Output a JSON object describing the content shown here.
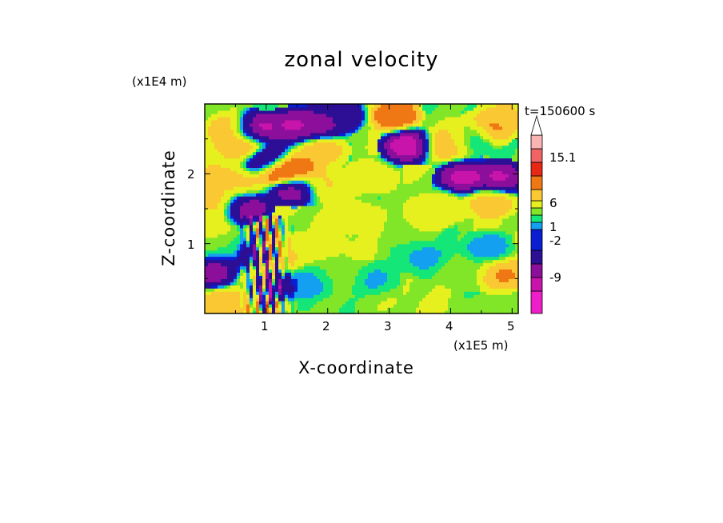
{
  "chart_data": {
    "type": "heatmap",
    "title": "zonal velocity",
    "xlabel": "X-coordinate",
    "ylabel": "Z-coordinate",
    "x_units": "(x1E5 m)",
    "y_units": "(x1E4 m)",
    "time_label": "t=150600 s",
    "x_ticks": [
      "1",
      "2",
      "3",
      "4",
      "5"
    ],
    "y_ticks": [
      "1",
      "2"
    ],
    "x_range": [
      0,
      5.1
    ],
    "z_range": [
      0,
      3.0
    ],
    "colorbar": {
      "labels": [
        "15.1",
        "6",
        "1",
        "-2",
        "-9"
      ],
      "levels": [
        -15,
        -12,
        -9,
        -6,
        -2,
        -1,
        0,
        1,
        2,
        4,
        6,
        9,
        12,
        15.1
      ],
      "colors": [
        "#f01ec8",
        "#c814aa",
        "#8c0f9b",
        "#2d0f96",
        "#0a1ed2",
        "#14a0f0",
        "#14e678",
        "#82e628",
        "#e6f01e",
        "#fac832",
        "#f07814",
        "#e62814",
        "#f06464",
        "#fab4b4"
      ],
      "extend_top": true
    },
    "features": [
      {
        "x": 0.85,
        "z": 2.65,
        "v": -12
      },
      {
        "x": 1.45,
        "z": 2.7,
        "v": -11
      },
      {
        "x": 1.85,
        "z": 2.7,
        "v": -9
      },
      {
        "x": 2.2,
        "z": 2.85,
        "v": -6
      },
      {
        "x": 3.1,
        "z": 2.85,
        "v": 9
      },
      {
        "x": 0.45,
        "z": 2.65,
        "v": 6
      },
      {
        "x": 0.2,
        "z": 1.95,
        "v": 5
      },
      {
        "x": 0.65,
        "z": 2.4,
        "v": 7
      },
      {
        "x": 1.05,
        "z": 2.2,
        "v": -10
      },
      {
        "x": 1.25,
        "z": 2.05,
        "v": 9
      },
      {
        "x": 1.3,
        "z": 2.05,
        "v": 13
      },
      {
        "x": 1.55,
        "z": 2.1,
        "v": 7
      },
      {
        "x": 1.9,
        "z": 2.35,
        "v": 6
      },
      {
        "x": 1.45,
        "z": 1.8,
        "v": -11
      },
      {
        "x": 0.65,
        "z": 1.55,
        "v": -11
      },
      {
        "x": 0.25,
        "z": 1.6,
        "v": 6
      },
      {
        "x": 0.6,
        "z": 1.8,
        "v": 5
      },
      {
        "x": 1.85,
        "z": 1.85,
        "v": 5
      },
      {
        "x": 2.7,
        "z": 1.95,
        "v": 4
      },
      {
        "x": 3.3,
        "z": 2.4,
        "v": -13
      },
      {
        "x": 3.9,
        "z": 2.4,
        "v": 6
      },
      {
        "x": 4.2,
        "z": 2.55,
        "v": 7
      },
      {
        "x": 4.35,
        "z": 2.55,
        "v": -6
      },
      {
        "x": 4.6,
        "z": 2.65,
        "v": 9
      },
      {
        "x": 4.85,
        "z": 2.8,
        "v": 5
      },
      {
        "x": 4.2,
        "z": 1.95,
        "v": -12
      },
      {
        "x": 4.8,
        "z": 1.95,
        "v": -11
      },
      {
        "x": 4.65,
        "z": 1.6,
        "v": 6
      },
      {
        "x": 3.65,
        "z": 1.45,
        "v": 4
      },
      {
        "x": 3.2,
        "z": 1.25,
        "v": 2
      },
      {
        "x": 3.9,
        "z": 1.55,
        "v": 3
      },
      {
        "x": 4.6,
        "z": 0.95,
        "v": -1
      },
      {
        "x": 4.85,
        "z": 0.55,
        "v": 7
      },
      {
        "x": 0.15,
        "z": 0.6,
        "v": -9
      },
      {
        "x": 0.3,
        "z": 0.15,
        "v": 6
      },
      {
        "x": 0.2,
        "z": 0.95,
        "v": 1
      },
      {
        "x": 0.1,
        "z": 1.25,
        "v": 3
      },
      {
        "x": 1.05,
        "z": 0.45,
        "v": -11
      },
      {
        "x": 0.95,
        "z": 0.8,
        "v": -10
      },
      {
        "x": 1.1,
        "z": 0.75,
        "v": 8
      },
      {
        "x": 0.9,
        "z": 0.5,
        "v": 6
      },
      {
        "x": 1.25,
        "z": 0.9,
        "v": 5
      },
      {
        "x": 2.2,
        "z": 0.6,
        "v": 1.5
      },
      {
        "x": 2.8,
        "z": 0.5,
        "v": -0.5
      },
      {
        "x": 1.7,
        "z": 0.45,
        "v": -0.5
      },
      {
        "x": 3.5,
        "z": 0.8,
        "v": -0.5
      },
      {
        "x": 4.2,
        "z": 0.6,
        "v": 1.5
      },
      {
        "x": 1.9,
        "z": 0.95,
        "v": 2.5
      },
      {
        "x": 2.5,
        "z": 1.4,
        "v": 3
      },
      {
        "x": 0.45,
        "z": 0.1,
        "v": 5
      },
      {
        "x": 2.9,
        "z": 0.05,
        "v": 2
      },
      {
        "x": 4.9,
        "z": 0.1,
        "v": 1.5
      }
    ]
  }
}
